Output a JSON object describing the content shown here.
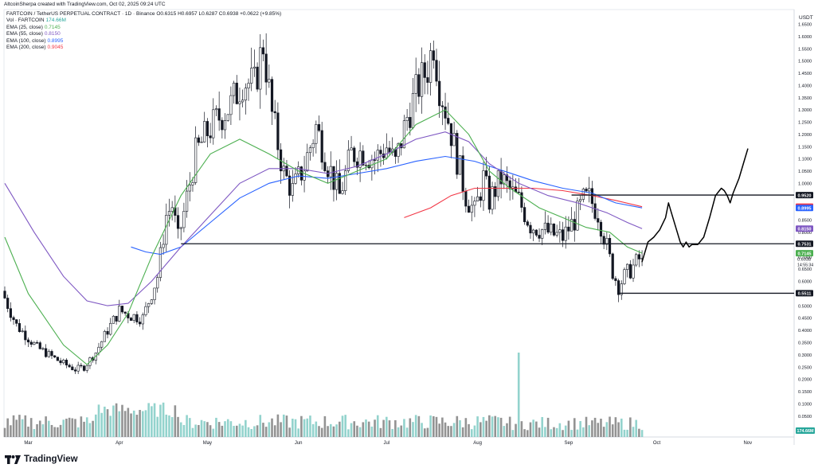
{
  "header": {
    "attribution": "AltcoinSherpa created with TradingView.com, Oct 02, 2025 09:24 UTC",
    "symbol": "FARTCOIN / TetherUS PERPETUAL CONTRACT · 1D · Binance",
    "ohlc": "O0.6315 H0.6957 L0.6287 C0.6938 +0.0622 (+9.85%)"
  },
  "legend": [
    {
      "label": "Vol · FARTCOIN",
      "value": "174.66M",
      "color": "#26a69a"
    },
    {
      "label": "EMA (25, close)",
      "value": "0.7145",
      "color": "#4caf50"
    },
    {
      "label": "EMA (55, close)",
      "value": "0.8150",
      "color": "#7e57c2"
    },
    {
      "label": "EMA (100, close)",
      "value": "0.8995",
      "color": "#2962ff"
    },
    {
      "label": "EMA (200, close)",
      "value": "0.9045",
      "color": "#f23645"
    }
  ],
  "logo_text": "TradingView",
  "chart_data": {
    "type": "candlestick",
    "y_unit": "USDT",
    "ylim": [
      0.0,
      1.7
    ],
    "y_ticks": [
      0.05,
      0.1,
      0.15,
      0.2,
      0.25,
      0.3,
      0.35,
      0.4,
      0.45,
      0.5,
      0.55,
      0.6,
      0.65,
      0.7,
      0.75,
      0.8,
      0.85,
      0.9,
      0.95,
      1.0,
      1.05,
      1.1,
      1.15,
      1.2,
      1.25,
      1.3,
      1.35,
      1.4,
      1.45,
      1.5,
      1.55,
      1.6,
      1.65
    ],
    "x_labels": [
      "Mar",
      "Apr",
      "May",
      "Jun",
      "Jul",
      "Aug",
      "Sep",
      "Oct",
      "Nov"
    ],
    "x_label_days": [
      8,
      39,
      69,
      100,
      130,
      161,
      192,
      222,
      253
    ],
    "current_price": "0.6938",
    "countdown": "14:55:34",
    "volume_label": "174.66M",
    "colors": {
      "up": "#787b86",
      "down": "#131722",
      "vol_up": "#80cbc4",
      "vol_down": "#808080",
      "vol_spike": "#80cbc4"
    },
    "ema25": [
      [
        0,
        0.78
      ],
      [
        8,
        0.55
      ],
      [
        20,
        0.34
      ],
      [
        28,
        0.26
      ],
      [
        35,
        0.34
      ],
      [
        42,
        0.47
      ],
      [
        50,
        0.7
      ],
      [
        60,
        0.95
      ],
      [
        70,
        1.12
      ],
      [
        80,
        1.18
      ],
      [
        90,
        1.12
      ],
      [
        100,
        1.05
      ],
      [
        110,
        1.0
      ],
      [
        120,
        1.05
      ],
      [
        130,
        1.1
      ],
      [
        140,
        1.24
      ],
      [
        150,
        1.3
      ],
      [
        158,
        1.2
      ],
      [
        165,
        1.05
      ],
      [
        172,
        0.98
      ],
      [
        182,
        0.9
      ],
      [
        192,
        0.85
      ],
      [
        198,
        0.82
      ],
      [
        206,
        0.8
      ],
      [
        212,
        0.74
      ],
      [
        217,
        0.715
      ]
    ],
    "ema55": [
      [
        0,
        1.0
      ],
      [
        10,
        0.8
      ],
      [
        20,
        0.62
      ],
      [
        28,
        0.52
      ],
      [
        35,
        0.5
      ],
      [
        42,
        0.51
      ],
      [
        50,
        0.6
      ],
      [
        60,
        0.74
      ],
      [
        70,
        0.87
      ],
      [
        80,
        1.0
      ],
      [
        90,
        1.06
      ],
      [
        100,
        1.06
      ],
      [
        110,
        1.04
      ],
      [
        120,
        1.07
      ],
      [
        130,
        1.12
      ],
      [
        140,
        1.18
      ],
      [
        150,
        1.21
      ],
      [
        158,
        1.17
      ],
      [
        165,
        1.08
      ],
      [
        175,
        1.0
      ],
      [
        185,
        0.95
      ],
      [
        195,
        0.92
      ],
      [
        205,
        0.88
      ],
      [
        212,
        0.84
      ],
      [
        217,
        0.815
      ]
    ],
    "ema100": [
      [
        43,
        0.74
      ],
      [
        48,
        0.72
      ],
      [
        53,
        0.71
      ],
      [
        60,
        0.74
      ],
      [
        70,
        0.84
      ],
      [
        80,
        0.94
      ],
      [
        90,
        1.0
      ],
      [
        100,
        1.03
      ],
      [
        110,
        1.02
      ],
      [
        120,
        1.04
      ],
      [
        130,
        1.06
      ],
      [
        140,
        1.09
      ],
      [
        150,
        1.11
      ],
      [
        160,
        1.09
      ],
      [
        170,
        1.05
      ],
      [
        180,
        1.01
      ],
      [
        190,
        0.98
      ],
      [
        200,
        0.96
      ],
      [
        208,
        0.92
      ],
      [
        217,
        0.8995
      ]
    ],
    "ema200": [
      [
        136,
        0.86
      ],
      [
        145,
        0.9
      ],
      [
        152,
        0.95
      ],
      [
        160,
        0.98
      ],
      [
        170,
        0.98
      ],
      [
        180,
        0.98
      ],
      [
        190,
        0.97
      ],
      [
        200,
        0.95
      ],
      [
        208,
        0.93
      ],
      [
        217,
        0.9045
      ]
    ],
    "hlines": [
      {
        "price": 0.952,
        "label": "0.9520",
        "x_start_day": 193
      },
      {
        "price": 0.7531,
        "label": "0.7531",
        "x_start_day": 60
      },
      {
        "price": 0.5511,
        "label": "0.5511",
        "x_start_day": 209
      }
    ],
    "right_labels": [
      {
        "price": 0.952,
        "text": "0.9520",
        "bg": "#131722"
      },
      {
        "price": 0.9045,
        "text": "0.9045",
        "bg": "#f23645"
      },
      {
        "price": 0.8995,
        "text": "0.8995",
        "bg": "#2962ff"
      },
      {
        "price": 0.815,
        "text": "0.8150",
        "bg": "#7e57c2"
      },
      {
        "price": 0.7531,
        "text": "0.7531",
        "bg": "#131722"
      },
      {
        "price": 0.7145,
        "text": "0.7145",
        "bg": "#4caf50"
      },
      {
        "price": 0.5511,
        "text": "0.5511",
        "bg": "#131722"
      }
    ],
    "drawing": [
      [
        217,
        0.68
      ],
      [
        219,
        0.76
      ],
      [
        221,
        0.78
      ],
      [
        223,
        0.81
      ],
      [
        225,
        0.86
      ],
      [
        226,
        0.92
      ],
      [
        227,
        0.88
      ],
      [
        229,
        0.8
      ],
      [
        230,
        0.76
      ],
      [
        231,
        0.74
      ],
      [
        232,
        0.76
      ],
      [
        233,
        0.74
      ],
      [
        234,
        0.75
      ],
      [
        236,
        0.75
      ],
      [
        238,
        0.78
      ],
      [
        240,
        0.86
      ],
      [
        242,
        0.95
      ],
      [
        244,
        0.98
      ],
      [
        245,
        0.97
      ],
      [
        246,
        0.95
      ],
      [
        247,
        0.92
      ],
      [
        248,
        0.96
      ],
      [
        250,
        1.02
      ],
      [
        252,
        1.1
      ],
      [
        253,
        1.14
      ]
    ]
  }
}
